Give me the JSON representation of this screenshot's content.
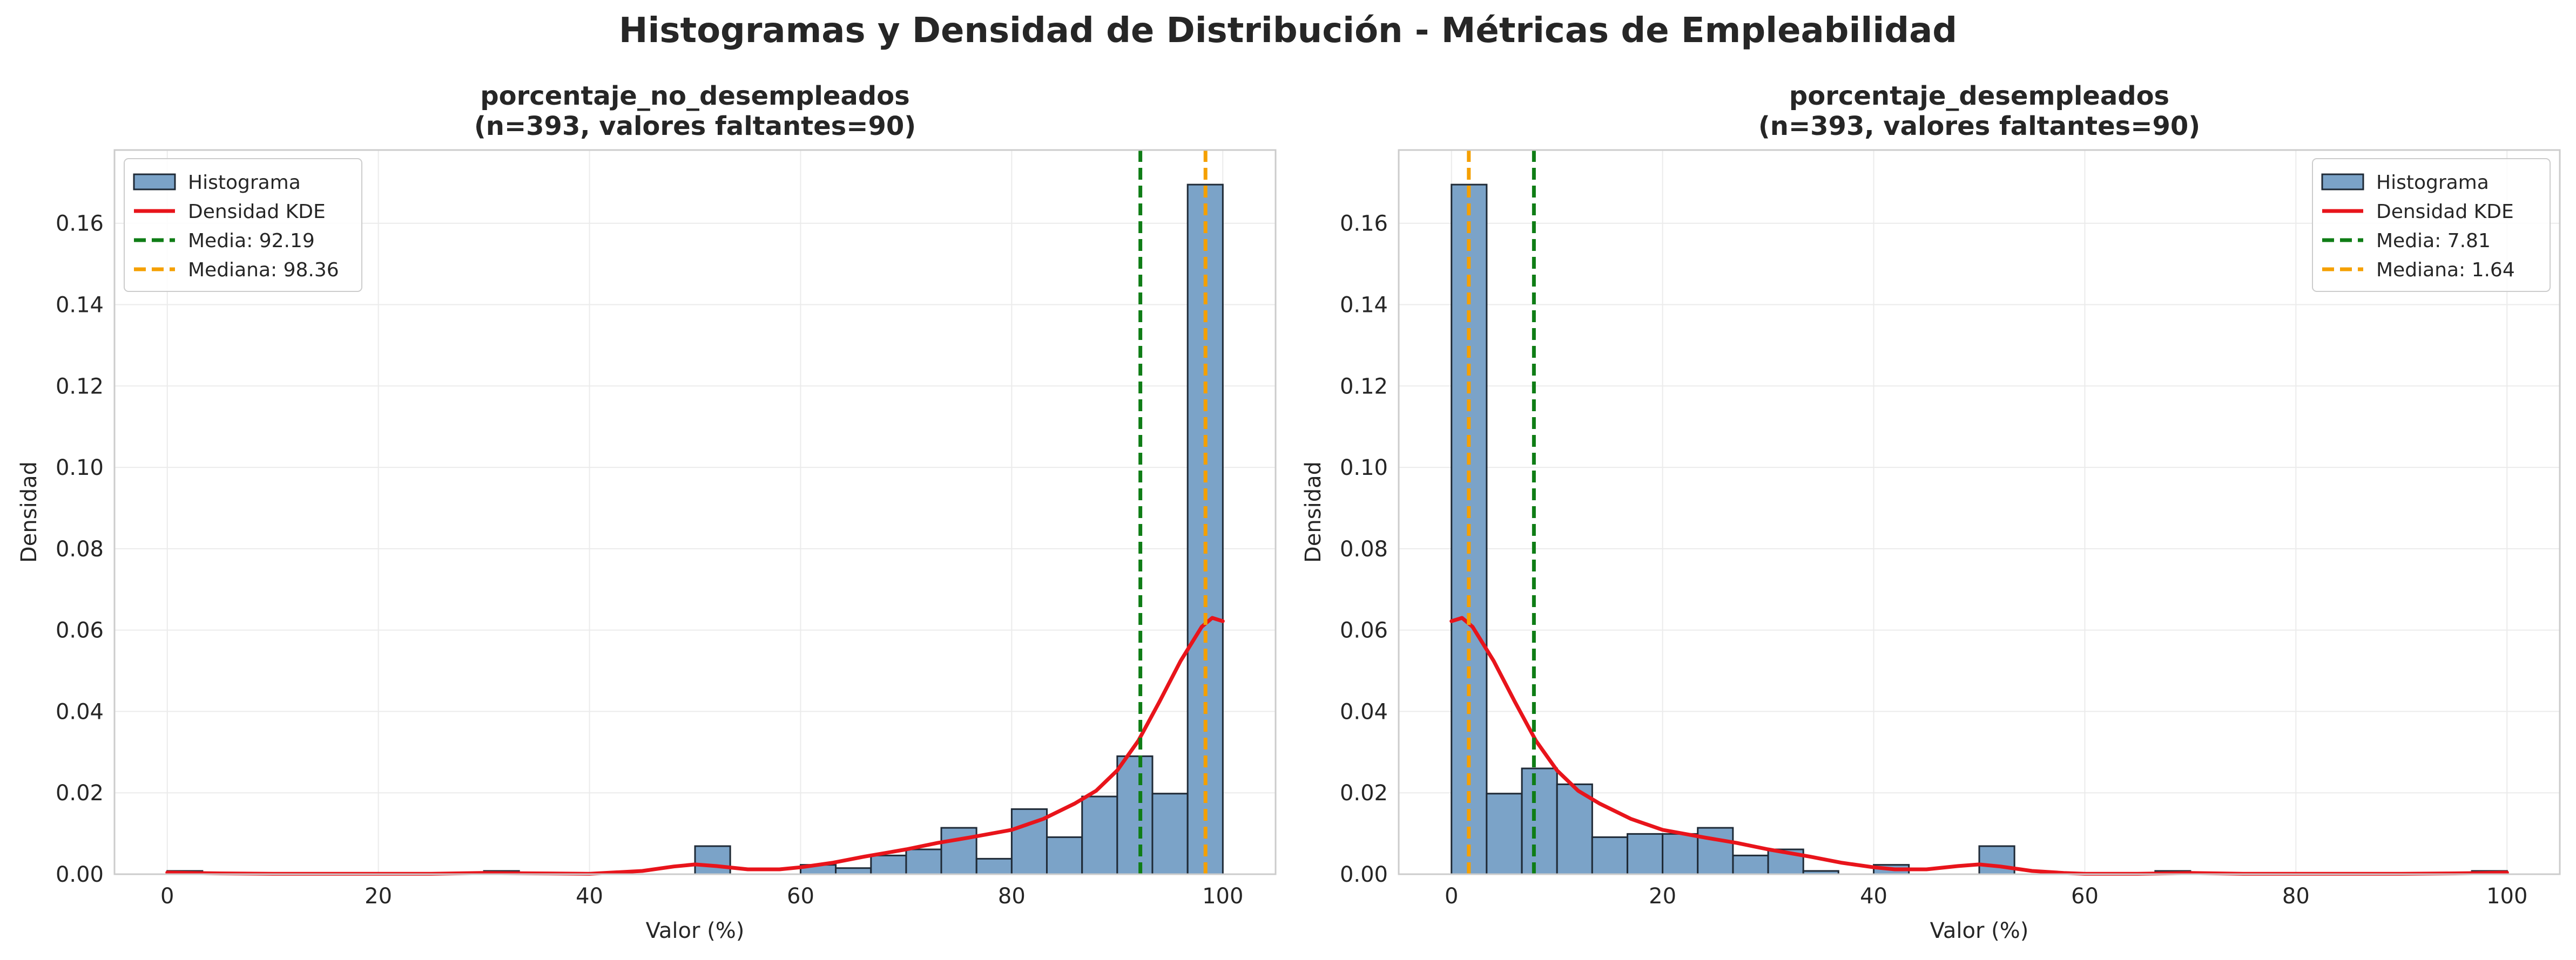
{
  "suptitle": "Histogramas y Densidad de Distribución - Métricas de Empleabilidad",
  "colors": {
    "bar_fill": "#7ba3c8",
    "bar_edge": "#1f2a36",
    "kde": "#e8141b",
    "mean": "#0f7d16",
    "median": "#f5a000",
    "grid": "#ebebeb",
    "spine": "#cccccc"
  },
  "chart_data": [
    {
      "type": "bar",
      "title_line1": "porcentaje_no_desempleados",
      "title_line2": "(n=393, valores faltantes=90)",
      "xlabel": "Valor (%)",
      "ylabel": "Densidad",
      "xlim": [
        -5,
        105
      ],
      "ylim": [
        0,
        0.178
      ],
      "xticks": [
        0,
        20,
        40,
        60,
        80,
        100
      ],
      "yticks": [
        0.0,
        0.02,
        0.04,
        0.06,
        0.08,
        0.1,
        0.12,
        0.14,
        0.16
      ],
      "grid": true,
      "legend_position": "upper left",
      "bins": {
        "left": [
          0,
          3.33,
          6.67,
          10.0,
          13.33,
          16.67,
          20.0,
          23.33,
          26.67,
          30.0,
          33.33,
          36.67,
          40.0,
          43.33,
          46.67,
          50.0,
          53.33,
          56.67,
          60.0,
          63.33,
          66.67,
          70.0,
          73.33,
          76.67,
          80.0,
          83.33,
          86.67,
          90.0,
          93.33,
          96.67
        ],
        "width": 3.333,
        "heights": [
          0.0008,
          0,
          0,
          0,
          0,
          0,
          0,
          0,
          0,
          0.0008,
          0,
          0,
          0,
          0,
          0,
          0.0069,
          0,
          0,
          0.0023,
          0.0015,
          0.0046,
          0.0061,
          0.0114,
          0.0038,
          0.016,
          0.0091,
          0.0191,
          0.029,
          0.0198,
          0.1695
        ]
      },
      "kde": {
        "x": [
          0,
          5,
          10,
          15,
          20,
          25,
          30,
          35,
          40,
          45,
          48,
          50,
          52,
          55,
          58,
          60,
          63,
          66,
          70,
          73,
          76,
          80,
          83,
          86,
          88,
          90,
          92,
          94,
          96,
          98,
          99,
          100
        ],
        "y": [
          0.0004,
          0.0002,
          0.0001,
          0.0001,
          0.0001,
          0.0001,
          0.0003,
          0.0002,
          0.0001,
          0.0008,
          0.0019,
          0.0024,
          0.002,
          0.0012,
          0.0012,
          0.0017,
          0.0028,
          0.0043,
          0.0061,
          0.0077,
          0.009,
          0.0109,
          0.0136,
          0.0174,
          0.0205,
          0.0255,
          0.0328,
          0.0424,
          0.0524,
          0.0608,
          0.063,
          0.0622
        ]
      },
      "mean": 92.19,
      "median": 98.36,
      "legend": {
        "hist": "Histograma",
        "kde": "Densidad KDE",
        "mean": "Media: 92.19",
        "median": "Mediana: 98.36"
      }
    },
    {
      "type": "bar",
      "title_line1": "porcentaje_desempleados",
      "title_line2": "(n=393, valores faltantes=90)",
      "xlabel": "Valor (%)",
      "ylabel": "Densidad",
      "xlim": [
        -5,
        105
      ],
      "ylim": [
        0,
        0.178
      ],
      "xticks": [
        0,
        20,
        40,
        60,
        80,
        100
      ],
      "yticks": [
        0.0,
        0.02,
        0.04,
        0.06,
        0.08,
        0.1,
        0.12,
        0.14,
        0.16
      ],
      "grid": true,
      "legend_position": "upper right",
      "bins": {
        "left": [
          0,
          3.33,
          6.67,
          10.0,
          13.33,
          16.67,
          20.0,
          23.33,
          26.67,
          30.0,
          33.33,
          36.67,
          40.0,
          43.33,
          46.67,
          50.0,
          53.33,
          56.67,
          60.0,
          63.33,
          66.67,
          70.0,
          73.33,
          76.67,
          80.0,
          83.33,
          86.67,
          90.0,
          93.33,
          96.67
        ],
        "width": 3.333,
        "heights": [
          0.1695,
          0.0198,
          0.026,
          0.0221,
          0.0091,
          0.0099,
          0.0099,
          0.0114,
          0.0046,
          0.0061,
          0.0008,
          0,
          0.0023,
          0,
          0,
          0.0069,
          0,
          0,
          0,
          0,
          0.0008,
          0,
          0,
          0,
          0,
          0,
          0,
          0,
          0,
          0.0008
        ]
      },
      "kde": {
        "x": [
          0,
          1,
          2,
          4,
          6,
          8,
          10,
          12,
          14,
          17,
          20,
          24,
          27,
          30,
          34,
          37,
          40,
          42,
          45,
          48,
          50,
          52,
          55,
          58,
          60,
          65,
          70,
          75,
          80,
          85,
          90,
          95,
          100
        ],
        "y": [
          0.0622,
          0.063,
          0.0608,
          0.0524,
          0.0424,
          0.0328,
          0.0255,
          0.0205,
          0.0174,
          0.0136,
          0.0109,
          0.009,
          0.0077,
          0.0061,
          0.0043,
          0.0028,
          0.0017,
          0.0012,
          0.0012,
          0.002,
          0.0024,
          0.0019,
          0.0008,
          0.0003,
          0.0001,
          0.0001,
          0.0003,
          0.0001,
          0.0001,
          0.0001,
          0.0001,
          0.0002,
          0.0004
        ]
      },
      "mean": 7.81,
      "median": 1.64,
      "legend": {
        "hist": "Histograma",
        "kde": "Densidad KDE",
        "mean": "Media: 7.81",
        "median": "Mediana: 1.64"
      }
    }
  ]
}
